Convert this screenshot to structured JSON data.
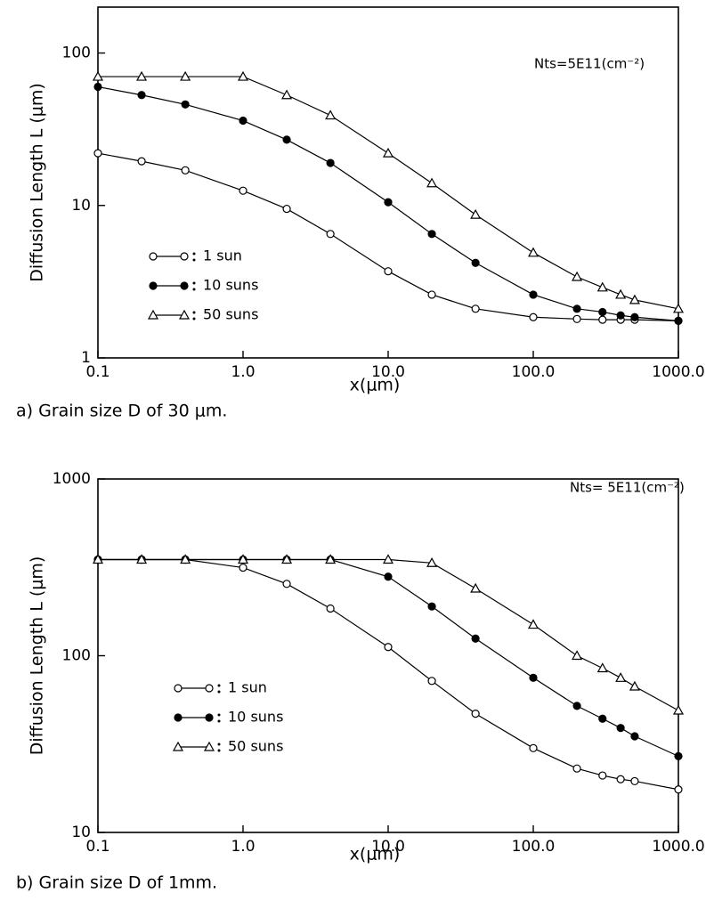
{
  "chart_data": [
    {
      "type": "line",
      "log_x": true,
      "log_y": true,
      "legend": "center left",
      "annotation": "Nts=5E11(cm⁻²)",
      "x_label": "x(μm)",
      "y_label": "Diffusion Length L (μm)",
      "caption": "a) Grain size D of 30 μm.",
      "xlim": [
        0.1,
        1000
      ],
      "ylim": [
        1,
        200
      ],
      "xticks": [
        0.1,
        {
          "value": 1,
          "label": "1.0"
        },
        {
          "value": 10,
          "label": "10.0"
        },
        {
          "value": 100,
          "label": "100.0"
        },
        {
          "value": 1000,
          "label": "1000.0"
        }
      ],
      "yticks": [
        1,
        10,
        100
      ],
      "x": [
        0.1,
        0.2,
        0.4,
        1,
        2,
        4,
        10,
        20,
        40,
        100,
        200,
        300,
        400,
        500,
        1000
      ],
      "series": [
        {
          "name": "1 sun",
          "marker": "open-circle",
          "color": "#000000",
          "values": [
            22,
            19.5,
            17,
            12.5,
            9.5,
            6.5,
            3.7,
            2.6,
            2.1,
            1.85,
            1.8,
            1.78,
            1.78,
            1.78,
            1.75
          ]
        },
        {
          "name": "10 suns",
          "marker": "filled-circle",
          "color": "#000000",
          "values": [
            60,
            53,
            46,
            36,
            27,
            19,
            10.5,
            6.5,
            4.2,
            2.6,
            2.1,
            2.0,
            1.9,
            1.85,
            1.75
          ]
        },
        {
          "name": "50 suns",
          "marker": "open-triangle",
          "color": "#000000",
          "values": [
            70,
            70,
            70,
            70,
            53,
            39,
            22,
            14,
            8.7,
            4.9,
            3.4,
            2.9,
            2.6,
            2.4,
            2.1
          ]
        }
      ]
    },
    {
      "type": "line",
      "log_x": true,
      "log_y": true,
      "legend": "center left",
      "annotation": "Nts= 5E11(cm⁻²)",
      "x_label": "x(μm)",
      "y_label": "Diffusion Length L (μm)",
      "caption": "b) Grain size D of 1mm.",
      "xlim": [
        0.1,
        1000
      ],
      "ylim": [
        10,
        1000
      ],
      "xticks": [
        0.1,
        {
          "value": 1,
          "label": "1.0"
        },
        {
          "value": 10,
          "label": "10.0"
        },
        {
          "value": 100,
          "label": "100.0"
        },
        {
          "value": 1000,
          "label": "1000.0"
        }
      ],
      "yticks": [
        10,
        100,
        1000
      ],
      "x": [
        0.1,
        0.2,
        0.4,
        1,
        2,
        4,
        10,
        20,
        40,
        100,
        200,
        300,
        400,
        500,
        1000
      ],
      "series": [
        {
          "name": "1 sun",
          "marker": "open-circle",
          "color": "#000000",
          "values": [
            350,
            350,
            350,
            315,
            255,
            185,
            112,
            72,
            47,
            30,
            23,
            21,
            20,
            19.5,
            17.5
          ]
        },
        {
          "name": "10 suns",
          "marker": "filled-circle",
          "color": "#000000",
          "values": [
            350,
            350,
            350,
            350,
            350,
            350,
            280,
            190,
            125,
            75,
            52,
            44,
            39,
            35,
            27
          ]
        },
        {
          "name": "50 suns",
          "marker": "open-triangle",
          "color": "#000000",
          "values": [
            350,
            350,
            350,
            350,
            350,
            350,
            350,
            335,
            240,
            150,
            100,
            85,
            75,
            67,
            49
          ]
        }
      ]
    }
  ]
}
